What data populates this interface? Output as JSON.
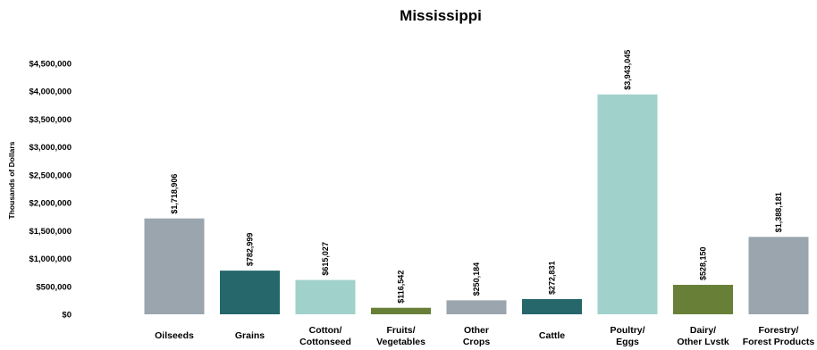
{
  "chart_data": {
    "type": "bar",
    "title": "Mississippi",
    "xlabel": "",
    "ylabel": "Thousands of Dollars",
    "ylim": [
      0,
      4500000
    ],
    "y_ticks": [
      "$0",
      "$500,000",
      "$1,000,000",
      "$1,500,000",
      "$2,000,000",
      "$2,500,000",
      "$3,000,000",
      "$3,500,000",
      "$4,000,000",
      "$4,500,000"
    ],
    "grid": false,
    "categories": [
      [
        "Oilseeds"
      ],
      [
        "Grains"
      ],
      [
        "Cotton/",
        "Cottonseed"
      ],
      [
        "Fruits/",
        "Vegetables"
      ],
      [
        "Other",
        "Crops"
      ],
      [
        "Cattle"
      ],
      [
        "Poultry/",
        "Eggs"
      ],
      [
        "Dairy/",
        "Other Lvstk"
      ],
      [
        "Forestry/",
        "Forest Products"
      ]
    ],
    "values": [
      1718906,
      782999,
      615027,
      116542,
      250184,
      272831,
      3943045,
      528150,
      1388181
    ],
    "data_labels": [
      "$1,718,906",
      "$782,999",
      "$615,027",
      "$116,542",
      "$250,184",
      "$272,831",
      "$3,943,045",
      "$528,150",
      "$1,388,181"
    ],
    "colors": [
      "#9aa5ae",
      "#25676b",
      "#a0d1ca",
      "#687f38",
      "#9aa5ae",
      "#25676b",
      "#a0d1ca",
      "#687f38",
      "#9aa5ae"
    ]
  }
}
